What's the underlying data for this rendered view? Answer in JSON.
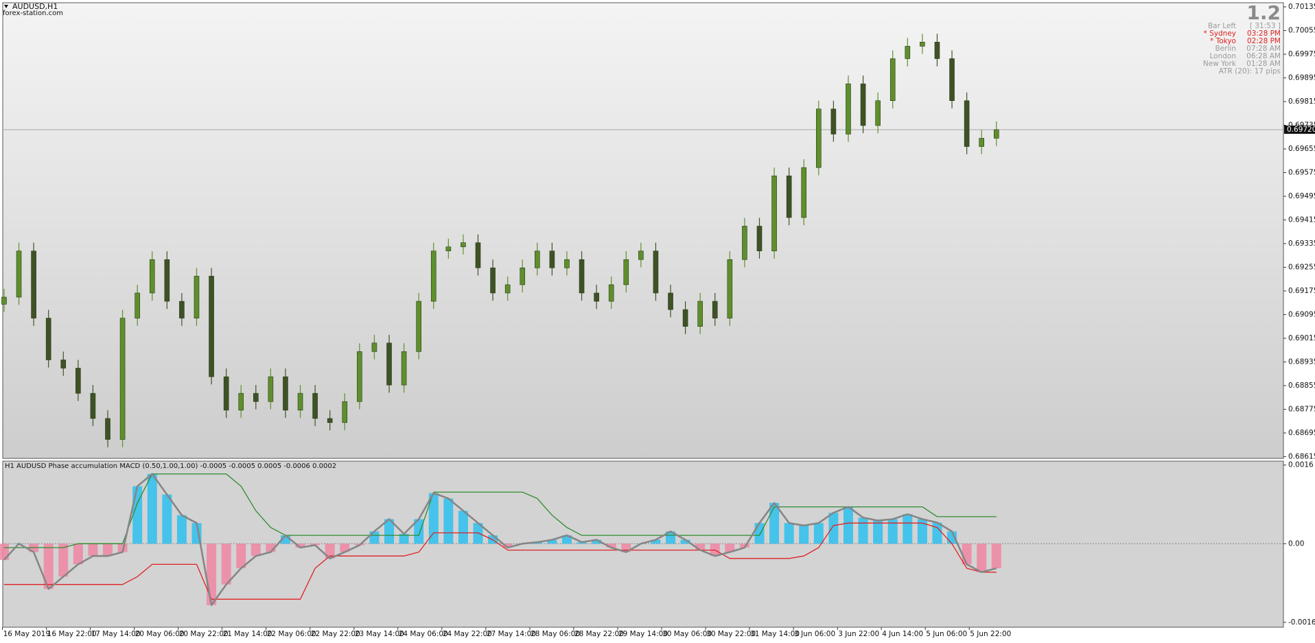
{
  "chart_data": [
    {
      "type": "candlestick",
      "title": "AUDUSD,H1",
      "subtitle": "forex-station.com",
      "open": [
        0.6913,
        0.69154,
        0.6931,
        0.69083,
        0.68942,
        0.68914,
        0.68829,
        0.68744,
        0.68673,
        0.69083,
        0.69168,
        0.69281,
        0.6914,
        0.69083,
        0.69225,
        0.68885,
        0.68772,
        0.68829,
        0.68801,
        0.68885,
        0.68772,
        0.68829,
        0.68744,
        0.6873,
        0.68801,
        0.6897,
        0.68999,
        0.68857,
        0.6897,
        0.6914,
        0.6931,
        0.69324,
        0.69338,
        0.69253,
        0.69168,
        0.69196,
        0.69253,
        0.6931,
        0.69253,
        0.69281,
        0.69168,
        0.6914,
        0.69196,
        0.69281,
        0.6931,
        0.69168,
        0.69112,
        0.69055,
        0.6914,
        0.69083,
        0.69281,
        0.69394,
        0.6931,
        0.69564,
        0.69423,
        0.69592,
        0.6979,
        0.69705,
        0.69875,
        0.69734,
        0.69818,
        0.6996,
        0.70002,
        0.70016,
        0.6996,
        0.69818,
        0.69663,
        0.69691
      ],
      "high": [
        0.69182,
        0.69338,
        0.69338,
        0.69111,
        0.6897,
        0.68942,
        0.68857,
        0.68772,
        0.69111,
        0.69196,
        0.69309,
        0.69309,
        0.69168,
        0.69253,
        0.69253,
        0.68913,
        0.68857,
        0.68857,
        0.68913,
        0.68913,
        0.68857,
        0.68857,
        0.68772,
        0.68829,
        0.68998,
        0.69027,
        0.69027,
        0.68998,
        0.69168,
        0.69338,
        0.69352,
        0.69366,
        0.69366,
        0.69281,
        0.69224,
        0.69281,
        0.69338,
        0.69338,
        0.69309,
        0.69309,
        0.69196,
        0.69224,
        0.69309,
        0.69338,
        0.69338,
        0.69196,
        0.6914,
        0.69168,
        0.69168,
        0.69309,
        0.69422,
        0.69422,
        0.69592,
        0.69592,
        0.6962,
        0.69818,
        0.69818,
        0.69903,
        0.69903,
        0.69846,
        0.69988,
        0.7003,
        0.70044,
        0.70044,
        0.69988,
        0.69846,
        0.69719,
        0.69748
      ],
      "low": [
        0.69104,
        0.69128,
        0.69057,
        0.68916,
        0.68888,
        0.68803,
        0.68718,
        0.68647,
        0.68647,
        0.69057,
        0.69142,
        0.69114,
        0.69057,
        0.69057,
        0.68859,
        0.68746,
        0.68746,
        0.68775,
        0.68775,
        0.68746,
        0.68746,
        0.68718,
        0.68704,
        0.68704,
        0.68775,
        0.68944,
        0.68831,
        0.68831,
        0.68944,
        0.69114,
        0.69284,
        0.69298,
        0.69227,
        0.69142,
        0.69142,
        0.6917,
        0.69227,
        0.69227,
        0.69227,
        0.69142,
        0.69114,
        0.69114,
        0.6917,
        0.69255,
        0.69142,
        0.69086,
        0.69029,
        0.69029,
        0.69057,
        0.69057,
        0.69255,
        0.69284,
        0.69284,
        0.69397,
        0.69397,
        0.69566,
        0.69679,
        0.69679,
        0.69708,
        0.69708,
        0.69792,
        0.69934,
        0.69976,
        0.69934,
        0.69792,
        0.69637,
        0.69637,
        0.69665
      ],
      "close": [
        0.69154,
        0.6931,
        0.69083,
        0.68942,
        0.68914,
        0.68829,
        0.68744,
        0.68673,
        0.69083,
        0.69168,
        0.69281,
        0.6914,
        0.69083,
        0.69225,
        0.68885,
        0.68772,
        0.68829,
        0.68801,
        0.68885,
        0.68772,
        0.68829,
        0.68744,
        0.6873,
        0.68801,
        0.6897,
        0.68999,
        0.68857,
        0.6897,
        0.6914,
        0.6931,
        0.69324,
        0.69338,
        0.69253,
        0.69168,
        0.69196,
        0.69253,
        0.6931,
        0.69253,
        0.69281,
        0.69168,
        0.6914,
        0.69196,
        0.69281,
        0.6931,
        0.69168,
        0.69112,
        0.69055,
        0.6914,
        0.69083,
        0.69281,
        0.69394,
        0.6931,
        0.69564,
        0.69423,
        0.69592,
        0.6979,
        0.69705,
        0.69875,
        0.69734,
        0.69818,
        0.6996,
        0.70002,
        0.70016,
        0.6996,
        0.69818,
        0.69663,
        0.69691,
        0.6972
      ],
      "up_color": "#5e8f2c",
      "down_color": "#3f5226",
      "xlim": [
        -0.09,
        86.38
      ],
      "xticks": [
        {
          "value": -0.11,
          "label": "16 May 2019"
        },
        {
          "value": 2.86,
          "label": "16 May 22:00"
        },
        {
          "value": 5.82,
          "label": "17 May 14:00"
        },
        {
          "value": 8.79,
          "label": "20 May 06:00"
        },
        {
          "value": 11.76,
          "label": "20 May 22:00"
        },
        {
          "value": 14.72,
          "label": "21 May 14:00"
        },
        {
          "value": 17.69,
          "label": "22 May 06:00"
        },
        {
          "value": 20.66,
          "label": "22 May 22:00"
        },
        {
          "value": 23.63,
          "label": "23 May 14:00"
        },
        {
          "value": 26.59,
          "label": "24 May 06:00"
        },
        {
          "value": 29.56,
          "label": "24 May 22:00"
        },
        {
          "value": 32.53,
          "label": "27 May 14:00"
        },
        {
          "value": 35.5,
          "label": "28 May 06:00"
        },
        {
          "value": 38.46,
          "label": "28 May 22:00"
        },
        {
          "value": 41.43,
          "label": "29 May 14:00"
        },
        {
          "value": 44.4,
          "label": "30 May 06:00"
        },
        {
          "value": 47.37,
          "label": "30 May 22:00"
        },
        {
          "value": 50.33,
          "label": "31 May 14:00"
        },
        {
          "value": 53.3,
          "label": "3 Jun 06:00"
        },
        {
          "value": 56.27,
          "label": "3 Jun 22:00"
        },
        {
          "value": 59.23,
          "label": "4 Jun 14:00"
        },
        {
          "value": 62.2,
          "label": "5 Jun 06:00"
        },
        {
          "value": 65.17,
          "label": "5 Jun 22:00"
        }
      ],
      "ylim": [
        0.68609,
        0.70149
      ],
      "yticks": [
        0.70135,
        0.70055,
        0.69975,
        0.69895,
        0.69815,
        0.69735,
        0.69655,
        0.69575,
        0.69495,
        0.69415,
        0.69335,
        0.69255,
        0.69175,
        0.69095,
        0.69015,
        0.68935,
        0.68855,
        0.68775,
        0.68695,
        0.68615
      ],
      "current_price": {
        "value": 0.6972,
        "label": "0.69720"
      },
      "info": {
        "big": "1.2",
        "rows": [
          [
            "Bar Left",
            "[ 31:53 ]"
          ],
          [
            "* Sydney",
            "03:28 PM"
          ],
          [
            "* Tokyo",
            "02:28 PM"
          ],
          [
            "Berlin",
            "07:28 AM"
          ],
          [
            "London",
            "06:28 AM"
          ],
          [
            "New York",
            "01:28 AM"
          ]
        ],
        "atr": "ATR (20): 17 pips"
      }
    },
    {
      "type": "macd",
      "title": "H1 AUDUSD Phase accumulation MACD (0.50,1.00,1.00) -0.0005 -0.0005 0.0005 -0.0006 0.0002",
      "ylim": [
        -0.0017,
        0.00168
      ],
      "yticks": [
        0.0016,
        {
          "value": 0,
          "label": "0.00"
        },
        -0.0016
      ],
      "histogram": {
        "pos_color": "#2cc0ee",
        "neg_color": "#ee86a2",
        "line_color": "#868686",
        "values": [
          -0.00033,
          0,
          -0.00017,
          -0.00092,
          -0.00067,
          -0.00042,
          -0.00025,
          -0.00025,
          -0.00017,
          0.00117,
          0.00142,
          0.001,
          0.00058,
          0.00042,
          -0.00125,
          -0.00083,
          -0.0005,
          -0.00025,
          -0.00017,
          0.00017,
          -8e-05,
          -3e-05,
          -0.0003,
          -0.00017,
          -3e-05,
          0.00025,
          0.0005,
          0.0002,
          0.0005,
          0.00103,
          0.00092,
          0.00067,
          0.00042,
          0.00017,
          -8e-05,
          0,
          3e-05,
          8e-05,
          0.00017,
          3e-05,
          8e-05,
          -8e-05,
          -0.00017,
          0,
          8e-05,
          0.00025,
          8e-05,
          -0.00013,
          -0.00025,
          -0.00017,
          -8e-05,
          0.00042,
          0.00083,
          0.00042,
          0.00037,
          0.00042,
          0.00063,
          0.00075,
          0.00053,
          0.00047,
          0.0005,
          0.0006,
          0.0005,
          0.00043,
          0.00025,
          -0.00042,
          -0.00058,
          -0.0005
        ]
      },
      "series": [
        {
          "color": "#2e8b2e",
          "values": [
            -8e-05,
            -8e-05,
            -8e-05,
            -8e-05,
            -8e-05,
            0,
            0,
            0,
            0,
            0.00083,
            0.00142,
            0.00142,
            0.00142,
            0.00142,
            0.00142,
            0.00142,
            0.00117,
            0.00067,
            0.00033,
            0.00017,
            0.00017,
            0.00017,
            0.00017,
            0.00017,
            0.00017,
            0.00017,
            0.00017,
            0.00017,
            0.00017,
            0.00105,
            0.00105,
            0.00105,
            0.00105,
            0.00105,
            0.00105,
            0.00105,
            0.00092,
            0.00058,
            0.00033,
            0.00017,
            0.00017,
            0.00017,
            0.00017,
            0.00017,
            0.00017,
            0.00017,
            0.00017,
            0.00017,
            0.00017,
            0.00017,
            0.00017,
            0.00017,
            0.00075,
            0.00075,
            0.00075,
            0.00075,
            0.00075,
            0.00075,
            0.00075,
            0.00075,
            0.00075,
            0.00075,
            0.00075,
            0.00055,
            0.00055,
            0.00055,
            0.00055,
            0.00055
          ]
        },
        {
          "color": "#e02020",
          "values": [
            -0.00083,
            -0.00083,
            -0.00083,
            -0.00083,
            -0.00083,
            -0.00083,
            -0.00083,
            -0.00083,
            -0.00083,
            -0.00067,
            -0.00042,
            -0.00042,
            -0.00042,
            -0.00042,
            -0.00113,
            -0.00113,
            -0.00113,
            -0.00113,
            -0.00113,
            -0.00113,
            -0.00113,
            -0.0005,
            -0.00025,
            -0.00025,
            -0.00025,
            -0.00025,
            -0.00025,
            -0.00025,
            -0.00017,
            0.00022,
            0.00022,
            0.00022,
            0.00022,
            8e-05,
            -0.00013,
            -0.00013,
            -0.00013,
            -0.00013,
            -0.00013,
            -0.00013,
            -0.00013,
            -0.00013,
            -0.00013,
            -0.00013,
            -0.00013,
            -0.00013,
            -0.00013,
            -0.00013,
            -0.00013,
            -0.0003,
            -0.0003,
            -0.0003,
            -0.0003,
            -0.0003,
            -0.00025,
            -8e-05,
            0.00037,
            0.00042,
            0.00042,
            0.00042,
            0.00042,
            0.00042,
            0.00042,
            0.00033,
            0,
            -0.0005,
            -0.00058,
            -0.00058
          ]
        }
      ]
    }
  ]
}
